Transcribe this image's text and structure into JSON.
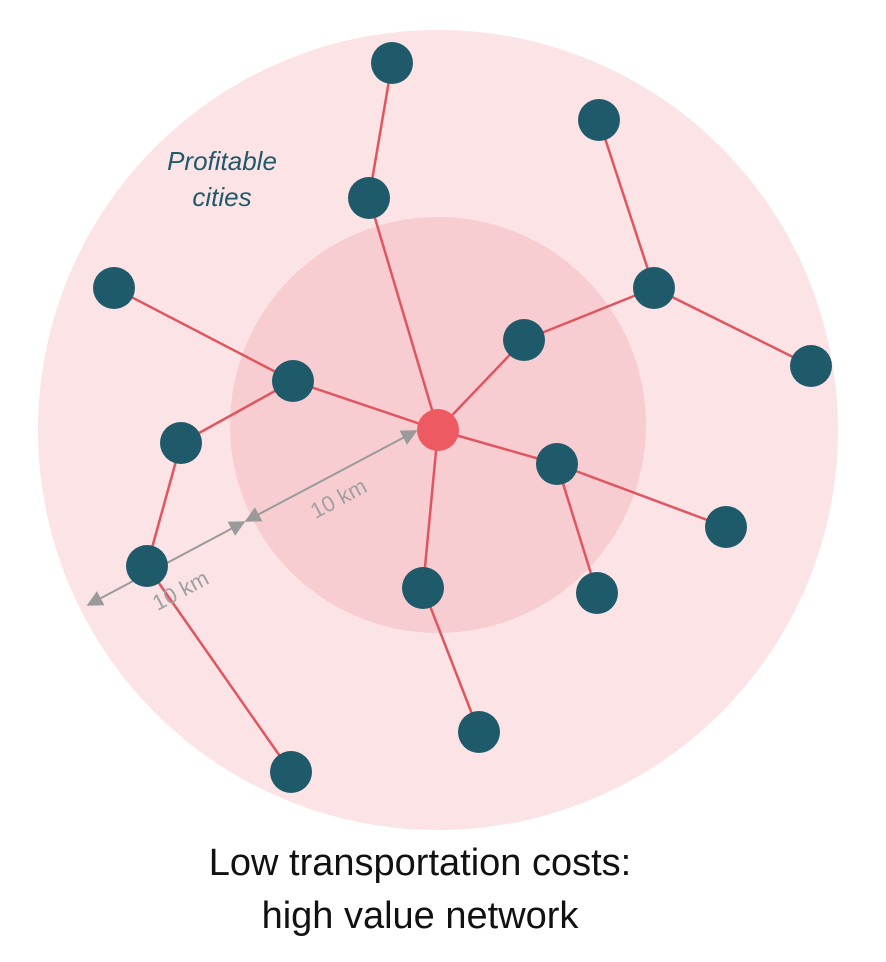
{
  "region_label": {
    "line1": "Profitable",
    "line2": "cities"
  },
  "distance_labels": [
    "10 km",
    "10 km"
  ],
  "caption": {
    "line1": "Low transportation costs:",
    "line2": "high value network"
  }
}
